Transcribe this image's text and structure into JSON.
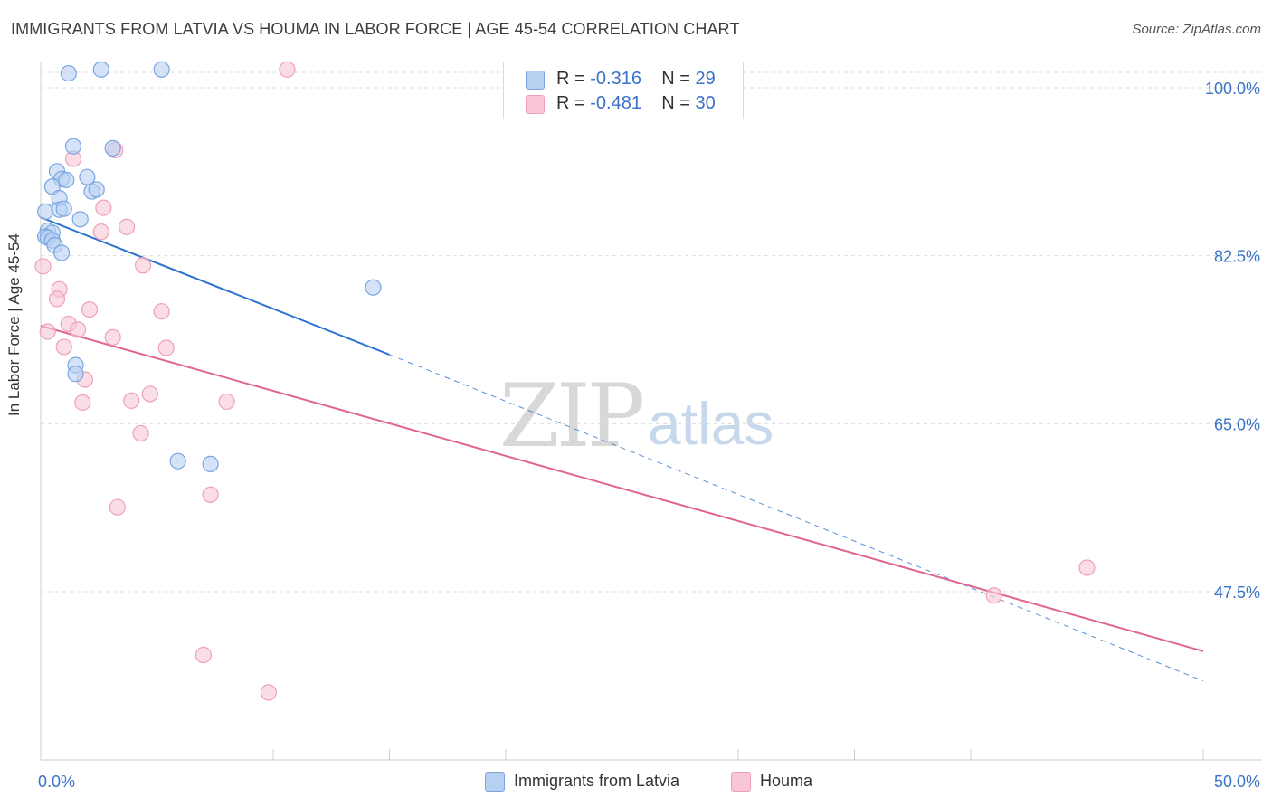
{
  "title": "IMMIGRANTS FROM LATVIA VS HOUMA IN LABOR FORCE | AGE 45-54 CORRELATION CHART",
  "source": "Source: ZipAtlas.com",
  "watermark": {
    "zip": "ZIP",
    "atlas": "atlas"
  },
  "colors": {
    "blue_fill": "#b7d0f2",
    "blue_stroke": "#7aa6e0",
    "blue_line": "#2f74d0",
    "pink_fill": "#f8c6d6",
    "pink_stroke": "#eea0ba",
    "pink_line": "#e06590",
    "grid": "#dddddd",
    "tick_label": "#3a72c8"
  },
  "legend": {
    "series": [
      {
        "r_label": "R =",
        "r_value": "-0.316",
        "n_label": "N =",
        "n_value": "29",
        "swatch": "#b7d0f2"
      },
      {
        "r_label": "R =",
        "r_value": "-0.481",
        "n_label": "N =",
        "n_value": "30",
        "swatch": "#f8c6d6"
      }
    ],
    "bottom": [
      {
        "label": "Immigrants from Latvia",
        "swatch": "#b7d0f2"
      },
      {
        "label": "Houma",
        "swatch": "#f8c6d6"
      }
    ]
  },
  "chart_data": {
    "type": "scatter",
    "title": "IMMIGRANTS FROM LATVIA VS HOUMA IN LABOR FORCE | AGE 45-54 CORRELATION CHART",
    "xlabel": "",
    "ylabel": "In Labor Force | Age 45-54",
    "xlim": [
      0,
      50
    ],
    "ylim": [
      31.5,
      102
    ],
    "x_tick_labels": [
      "0.0%",
      "50.0%"
    ],
    "y_ticks": [
      47.5,
      65.0,
      82.5,
      100.0
    ],
    "y_tick_labels": [
      "47.5%",
      "65.0%",
      "82.5%",
      "100.0%"
    ],
    "grid": true,
    "series": [
      {
        "name": "Immigrants from Latvia",
        "R": -0.316,
        "N": 29,
        "trend": {
          "x0": 0,
          "y0": 86.5,
          "x1": 15,
          "y1": 72.2,
          "x_dash_end": 50,
          "y_dash_end": 38.2
        },
        "points": [
          [
            1.2,
            101.5
          ],
          [
            2.6,
            101.9
          ],
          [
            5.2,
            101.9
          ],
          [
            1.4,
            93.9
          ],
          [
            3.1,
            93.7
          ],
          [
            0.7,
            91.3
          ],
          [
            0.9,
            90.5
          ],
          [
            1.1,
            90.4
          ],
          [
            2.0,
            90.7
          ],
          [
            0.5,
            89.7
          ],
          [
            2.2,
            89.2
          ],
          [
            2.4,
            89.4
          ],
          [
            0.8,
            88.5
          ],
          [
            0.2,
            87.1
          ],
          [
            0.8,
            87.3
          ],
          [
            1.0,
            87.4
          ],
          [
            1.7,
            86.3
          ],
          [
            0.3,
            85.1
          ],
          [
            0.5,
            84.9
          ],
          [
            0.2,
            84.5
          ],
          [
            0.3,
            84.4
          ],
          [
            0.5,
            84.1
          ],
          [
            0.6,
            83.6
          ],
          [
            0.9,
            82.8
          ],
          [
            14.3,
            79.2
          ],
          [
            1.5,
            71.1
          ],
          [
            1.5,
            70.2
          ],
          [
            5.9,
            61.1
          ],
          [
            7.3,
            60.8
          ]
        ]
      },
      {
        "name": "Houma",
        "R": -0.481,
        "N": 30,
        "trend": {
          "x0": 0,
          "y0": 75.2,
          "x1": 50,
          "y1": 41.3
        },
        "points": [
          [
            10.6,
            101.9
          ],
          [
            3.2,
            93.5
          ],
          [
            1.4,
            92.6
          ],
          [
            2.7,
            87.5
          ],
          [
            3.7,
            85.5
          ],
          [
            2.6,
            85.0
          ],
          [
            4.4,
            81.5
          ],
          [
            0.1,
            81.4
          ],
          [
            0.8,
            79.0
          ],
          [
            0.7,
            78.0
          ],
          [
            2.1,
            76.9
          ],
          [
            5.2,
            76.7
          ],
          [
            1.2,
            75.4
          ],
          [
            1.6,
            74.8
          ],
          [
            0.3,
            74.6
          ],
          [
            3.1,
            74.0
          ],
          [
            1.0,
            73.0
          ],
          [
            5.4,
            72.9
          ],
          [
            1.9,
            69.6
          ],
          [
            3.9,
            67.4
          ],
          [
            4.7,
            68.1
          ],
          [
            1.8,
            67.2
          ],
          [
            8.0,
            67.3
          ],
          [
            4.3,
            64.0
          ],
          [
            7.3,
            57.6
          ],
          [
            3.3,
            56.3
          ],
          [
            45.0,
            50.0
          ],
          [
            41.0,
            47.1
          ],
          [
            7.0,
            40.9
          ],
          [
            9.8,
            37.0
          ]
        ]
      }
    ]
  }
}
